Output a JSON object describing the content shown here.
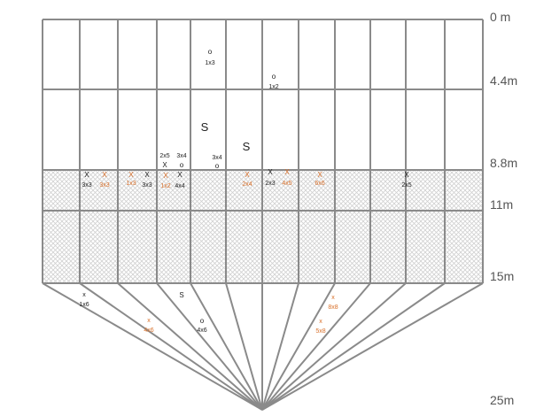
{
  "distance_labels": [
    "0 m",
    "4.4m",
    "8.8m",
    "11m",
    "15m",
    "25m"
  ],
  "colors": {
    "grid": "#8a8a8a",
    "black": "#222222",
    "orange": "#d9702a",
    "hatch": "#cfcfcf"
  },
  "markers": [
    {
      "symbol": "O",
      "label": "1x3",
      "color": "black"
    },
    {
      "symbol": "O",
      "label": "1x2",
      "color": "black"
    },
    {
      "symbol": "S",
      "label": "",
      "color": "black"
    },
    {
      "symbol": "S",
      "label": "",
      "color": "black"
    },
    {
      "symbol": "X",
      "label": "2x5",
      "color": "black"
    },
    {
      "symbol": "O",
      "label": "3x4",
      "color": "black"
    },
    {
      "symbol": "O",
      "label": "3x4",
      "color": "black"
    },
    {
      "symbol": "X",
      "label": "3x3",
      "color": "black"
    },
    {
      "symbol": "X",
      "label": "3x3",
      "color": "orange"
    },
    {
      "symbol": "X",
      "label": "1x3",
      "color": "orange"
    },
    {
      "symbol": "X",
      "label": "3x3",
      "color": "black"
    },
    {
      "symbol": "X",
      "label": "1x2",
      "color": "orange"
    },
    {
      "symbol": "X",
      "label": "4x4",
      "color": "black"
    },
    {
      "symbol": "X",
      "label": "2x4",
      "color": "orange"
    },
    {
      "symbol": "X",
      "label": "2x3",
      "color": "black"
    },
    {
      "symbol": "X",
      "label": "4x5",
      "color": "orange"
    },
    {
      "symbol": "X",
      "label": "6x6",
      "color": "orange"
    },
    {
      "symbol": "X",
      "label": "2x5",
      "color": "black"
    },
    {
      "symbol": "x",
      "label": "1x6",
      "color": "black"
    },
    {
      "symbol": "S",
      "label": "",
      "color": "black"
    },
    {
      "symbol": "x",
      "label": "4x6",
      "color": "orange"
    },
    {
      "symbol": "O",
      "label": "4x6",
      "color": "black"
    },
    {
      "symbol": "x",
      "label": "8x8",
      "color": "orange"
    },
    {
      "symbol": "x",
      "label": "5x8",
      "color": "orange"
    }
  ]
}
